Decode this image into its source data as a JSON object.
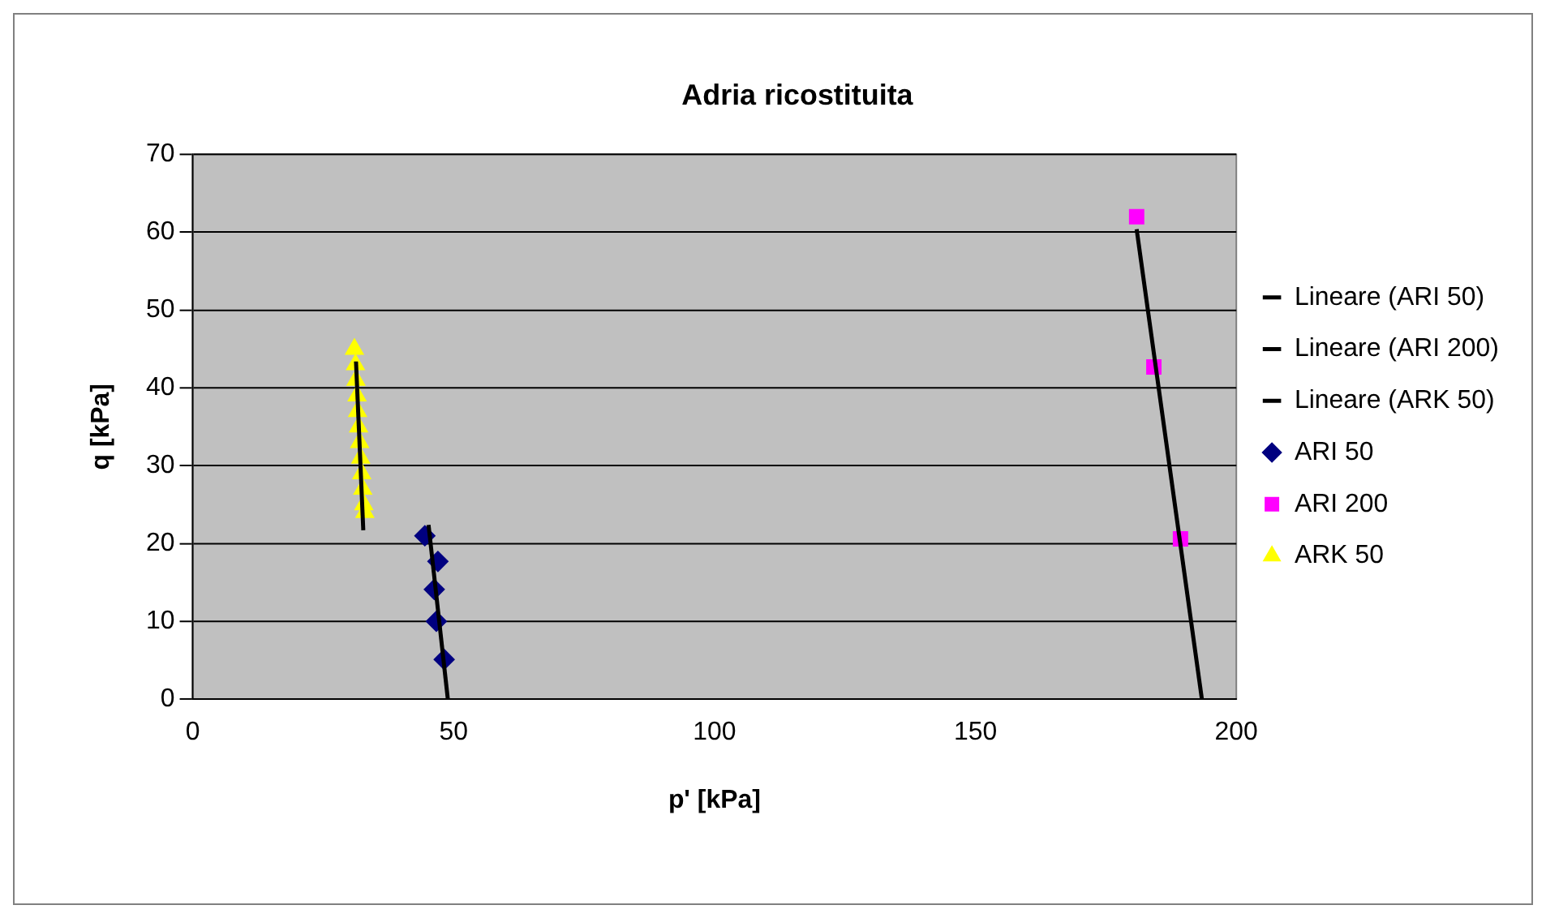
{
  "chart_data": {
    "type": "scatter",
    "title": "Adria ricostituita",
    "xlabel": "p' [kPa]",
    "ylabel": "q [kPa]",
    "xlim": [
      0,
      200
    ],
    "xticks": [
      0,
      50,
      100,
      150,
      200
    ],
    "ylim": [
      0,
      70
    ],
    "yticks": [
      0,
      10,
      20,
      30,
      40,
      50,
      60,
      70
    ],
    "grid": "y",
    "legend": "right",
    "series": [
      {
        "name": "ARI 50",
        "type": "scatter",
        "marker": "diamond",
        "color": "#000080",
        "x": [
          44.5,
          47,
          46.3,
          46.7,
          48.2
        ],
        "values": [
          21,
          17.7,
          14.1,
          10,
          5.1
        ]
      },
      {
        "name": "ARI 200",
        "type": "scatter",
        "marker": "square",
        "color": "#ff00ff",
        "x": [
          180.9,
          184.2,
          189.3
        ],
        "values": [
          62,
          42.7,
          20.6
        ]
      },
      {
        "name": "ARK 50",
        "type": "scatter",
        "marker": "triangle",
        "color": "#ffff00",
        "x": [
          31,
          31.2,
          31.3,
          31.5,
          31.6,
          31.8,
          32,
          32.2,
          32.4,
          32.6,
          32.8,
          33
        ],
        "values": [
          45,
          43,
          41,
          39,
          37,
          35,
          33,
          31,
          29,
          27,
          25,
          24
        ]
      },
      {
        "name": "Lineare (ARI 50)",
        "type": "line",
        "marker": "none",
        "color": "#000000",
        "x": [
          45.2,
          48.9
        ],
        "values": [
          22.4,
          0
        ]
      },
      {
        "name": "Lineare (ARI 200)",
        "type": "line",
        "marker": "none",
        "color": "#000000",
        "x": [
          180.9,
          193.4
        ],
        "values": [
          60.4,
          0
        ]
      },
      {
        "name": "Lineare (ARK 50)",
        "type": "line",
        "marker": "none",
        "color": "#000000",
        "x": [
          31.3,
          32.7
        ],
        "values": [
          43.4,
          21.7
        ]
      }
    ]
  }
}
